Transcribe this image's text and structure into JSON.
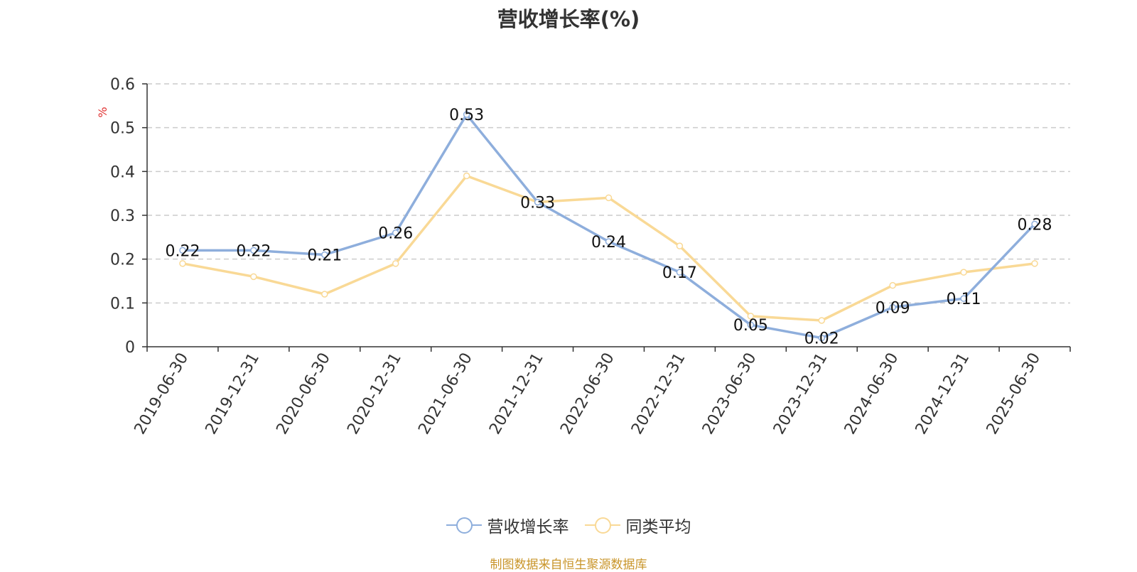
{
  "chart_data": {
    "type": "line",
    "title": "营收增长率(%)",
    "ylabel": "%",
    "xlabel": "",
    "categories": [
      "2019-06-30",
      "2019-12-31",
      "2020-06-30",
      "2020-12-31",
      "2021-06-30",
      "2021-12-31",
      "2022-06-30",
      "2022-12-31",
      "2023-06-30",
      "2023-12-31",
      "2024-06-30",
      "2024-12-31",
      "2025-06-30"
    ],
    "series": [
      {
        "name": "营收增长率",
        "color": "#8eaedc",
        "values": [
          0.22,
          0.22,
          0.21,
          0.26,
          0.53,
          0.33,
          0.24,
          0.17,
          0.05,
          0.02,
          0.09,
          0.11,
          0.28
        ],
        "labels": [
          "0.22",
          "0.22",
          "0.21",
          "0.26",
          "0.53",
          "0.33",
          "0.24",
          "0.17",
          "0.05",
          "0.02",
          "0.09",
          "0.11",
          "0.28"
        ],
        "show_labels": true
      },
      {
        "name": "同类平均",
        "color": "#f9d996",
        "values": [
          0.19,
          0.16,
          0.12,
          0.19,
          0.39,
          0.33,
          0.34,
          0.23,
          0.07,
          0.06,
          0.14,
          0.17,
          0.19
        ],
        "show_labels": false
      }
    ],
    "ylim": [
      0,
      0.6
    ],
    "yticks": [
      0,
      0.1,
      0.2,
      0.3,
      0.4,
      0.5,
      0.6
    ],
    "ytick_labels": [
      "0",
      "0.1",
      "0.2",
      "0.3",
      "0.4",
      "0.5",
      "0.6"
    ],
    "grid": true,
    "legend_position": "bottom-center"
  },
  "source": "制图数据来自恒生聚源数据库"
}
